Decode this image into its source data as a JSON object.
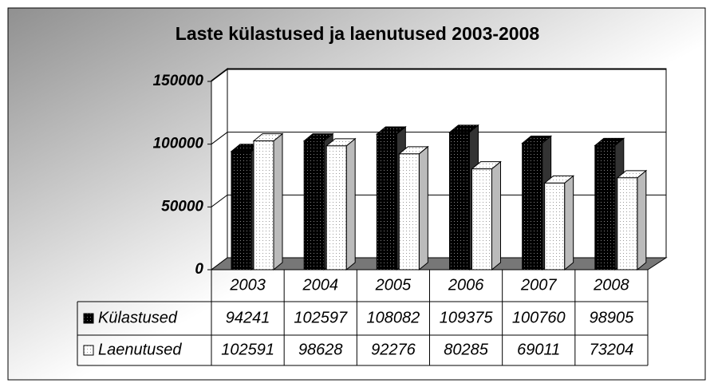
{
  "chart_data": {
    "type": "bar3d",
    "title": "Laste külastused ja laenutused 2003-2008",
    "categories": [
      "2003",
      "2004",
      "2005",
      "2006",
      "2007",
      "2008"
    ],
    "series": [
      {
        "name": "Külastused",
        "color": "#000000",
        "values": [
          94241,
          102597,
          108082,
          109375,
          100760,
          98905
        ]
      },
      {
        "name": "Laenutused",
        "color": "#ffffff",
        "values": [
          102591,
          98628,
          92276,
          80285,
          69011,
          73204
        ]
      }
    ],
    "ylim": [
      0,
      150000
    ],
    "yticks": [
      0,
      50000,
      100000,
      150000
    ],
    "grid": true
  }
}
